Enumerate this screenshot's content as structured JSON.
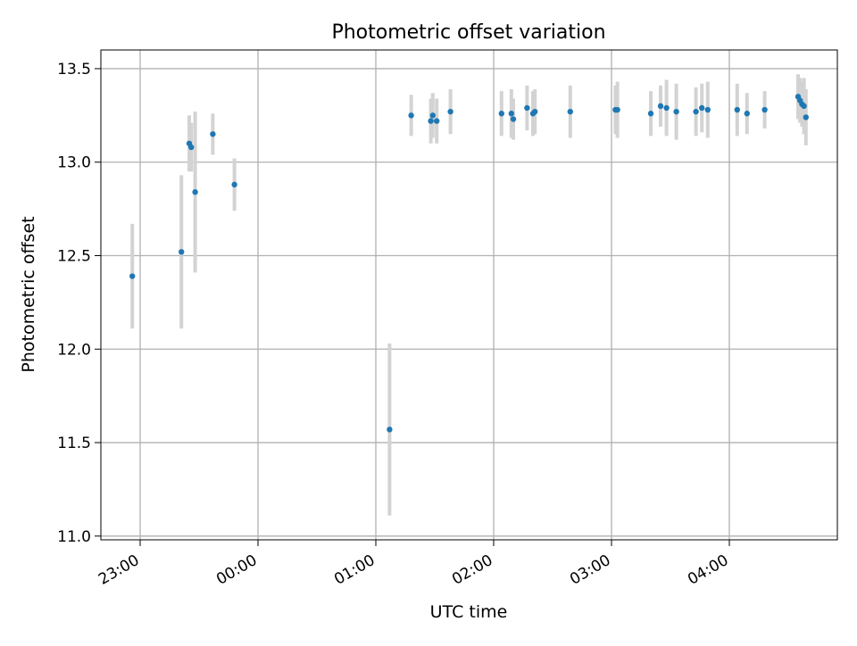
{
  "chart_data": {
    "type": "scatter",
    "title": "Photometric offset variation",
    "xlabel": "UTC time",
    "ylabel": "Photometric offset",
    "xlim": [
      "22:40",
      "04:55"
    ],
    "ylim": [
      10.98,
      13.6
    ],
    "grid": true,
    "x_ticks": [
      "23:00",
      "00:00",
      "01:00",
      "02:00",
      "03:00",
      "04:00"
    ],
    "y_ticks": [
      "11.0",
      "11.5",
      "12.0",
      "12.5",
      "13.0",
      "13.5"
    ],
    "point_color": "#1f77b4",
    "errorbar_color": "#d3d3d3",
    "series": [
      {
        "points": [
          {
            "x": "22:56",
            "y": 12.39,
            "yerr": 0.28
          },
          {
            "x": "23:21",
            "y": 12.52,
            "yerr": 0.41
          },
          {
            "x": "23:25",
            "y": 13.1,
            "yerr": 0.15
          },
          {
            "x": "23:26",
            "y": 13.08,
            "yerr": 0.13
          },
          {
            "x": "23:28",
            "y": 12.84,
            "yerr": 0.43
          },
          {
            "x": "23:37",
            "y": 13.15,
            "yerr": 0.11
          },
          {
            "x": "23:48",
            "y": 12.88,
            "yerr": 0.14
          },
          {
            "x": "01:07",
            "y": 11.57,
            "yerr": 0.46
          },
          {
            "x": "01:18",
            "y": 13.25,
            "yerr": 0.11
          },
          {
            "x": "01:28",
            "y": 13.22,
            "yerr": 0.12
          },
          {
            "x": "01:29",
            "y": 13.25,
            "yerr": 0.12
          },
          {
            "x": "01:31",
            "y": 13.22,
            "yerr": 0.12
          },
          {
            "x": "01:38",
            "y": 13.27,
            "yerr": 0.12
          },
          {
            "x": "02:04",
            "y": 13.26,
            "yerr": 0.12
          },
          {
            "x": "02:09",
            "y": 13.26,
            "yerr": 0.13
          },
          {
            "x": "02:10",
            "y": 13.23,
            "yerr": 0.11
          },
          {
            "x": "02:17",
            "y": 13.29,
            "yerr": 0.12
          },
          {
            "x": "02:20",
            "y": 13.26,
            "yerr": 0.12
          },
          {
            "x": "02:21",
            "y": 13.27,
            "yerr": 0.12
          },
          {
            "x": "02:39",
            "y": 13.27,
            "yerr": 0.14
          },
          {
            "x": "03:02",
            "y": 13.28,
            "yerr": 0.13
          },
          {
            "x": "03:03",
            "y": 13.28,
            "yerr": 0.15
          },
          {
            "x": "03:20",
            "y": 13.26,
            "yerr": 0.12
          },
          {
            "x": "03:25",
            "y": 13.3,
            "yerr": 0.11
          },
          {
            "x": "03:28",
            "y": 13.29,
            "yerr": 0.15
          },
          {
            "x": "03:33",
            "y": 13.27,
            "yerr": 0.15
          },
          {
            "x": "03:43",
            "y": 13.27,
            "yerr": 0.13
          },
          {
            "x": "03:46",
            "y": 13.29,
            "yerr": 0.13
          },
          {
            "x": "03:49",
            "y": 13.28,
            "yerr": 0.15
          },
          {
            "x": "04:04",
            "y": 13.28,
            "yerr": 0.14
          },
          {
            "x": "04:09",
            "y": 13.26,
            "yerr": 0.11
          },
          {
            "x": "04:18",
            "y": 13.28,
            "yerr": 0.1
          },
          {
            "x": "04:35",
            "y": 13.35,
            "yerr": 0.12
          },
          {
            "x": "04:36",
            "y": 13.33,
            "yerr": 0.12
          },
          {
            "x": "04:37",
            "y": 13.31,
            "yerr": 0.12
          },
          {
            "x": "04:38",
            "y": 13.3,
            "yerr": 0.15
          },
          {
            "x": "04:39",
            "y": 13.24,
            "yerr": 0.15
          }
        ]
      }
    ]
  }
}
